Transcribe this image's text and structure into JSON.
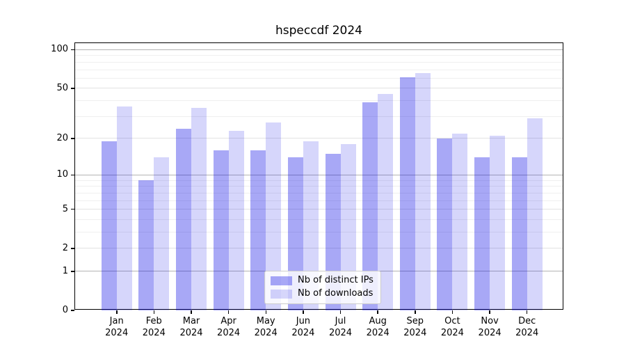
{
  "title": "hspeccdf 2024",
  "chart_data": {
    "type": "bar",
    "title": "hspeccdf 2024",
    "categories": [
      "Jan 2024",
      "Feb 2024",
      "Mar 2024",
      "Apr 2024",
      "May 2024",
      "Jun 2024",
      "Jul 2024",
      "Aug 2024",
      "Sep 2024",
      "Oct 2024",
      "Nov 2024",
      "Dec 2024"
    ],
    "series": [
      {
        "name": "Nb of distinct IPs",
        "values": [
          19,
          9,
          24,
          16,
          16,
          14,
          15,
          39,
          61,
          20,
          14,
          14
        ],
        "color_hex": "#a8a8f6",
        "fill": "rgba(0,0,230,0.34)"
      },
      {
        "name": "Nb of downloads",
        "values": [
          36,
          14,
          35,
          23,
          27,
          19,
          18,
          45,
          66,
          22,
          21,
          29
        ],
        "color_hex": "#d9d9fb",
        "fill": "rgba(0,0,230,0.16)"
      }
    ],
    "xlabel": "",
    "ylabel": "",
    "yscale": "log1p",
    "ylim": [
      0,
      112
    ],
    "yticks": [
      0,
      1,
      2,
      5,
      10,
      20,
      50,
      100
    ],
    "grid": true,
    "gridline_values": {
      "decade": [
        1,
        10,
        100
      ],
      "mid": [
        2,
        5,
        20,
        50
      ],
      "minor": [
        3,
        4,
        6,
        7,
        8,
        9,
        30,
        40,
        60,
        70,
        80,
        90
      ]
    },
    "legend": {
      "position": "bottom-center",
      "entries": [
        "Nb of distinct IPs",
        "Nb of downloads"
      ]
    }
  },
  "colors": {
    "bar_distinct_ips": "#a8a8f6",
    "bar_downloads": "#d9d9fb",
    "grid_decade": "#b4b4b4",
    "grid_mid": "#e2e2e2",
    "grid_minor": "#efefef",
    "spine": "#000000",
    "background": "#ffffff",
    "text": "#000000"
  }
}
